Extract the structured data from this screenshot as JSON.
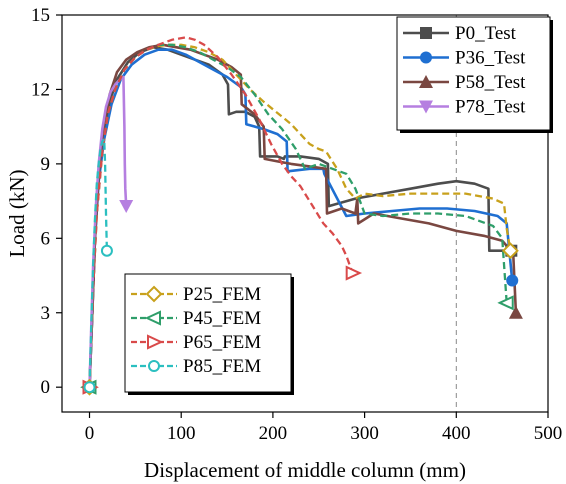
{
  "chart_data": {
    "type": "line",
    "title": "",
    "xlabel": "Displacement of middle column (mm)",
    "ylabel": "Load (kN)",
    "xlim": [
      -30,
      500
    ],
    "ylim": [
      -1,
      15
    ],
    "xticks": [
      0,
      100,
      200,
      300,
      400,
      500
    ],
    "yticks": [
      0,
      3,
      6,
      9,
      12,
      15
    ],
    "xtick_labels": [
      "0",
      "100",
      "200",
      "300",
      "400",
      "500"
    ],
    "ytick_labels": [
      "0",
      "3",
      "6",
      "9",
      "12",
      "15"
    ],
    "reference_line": {
      "x": 400,
      "style": "dashed",
      "color": "#888888"
    },
    "grid": false,
    "legends": [
      {
        "position": "top-right",
        "entries": [
          "P0_Test",
          "P36_Test",
          "P58_Test",
          "P78_Test"
        ]
      },
      {
        "position": "bottom-left",
        "entries": [
          "P25_FEM",
          "P45_FEM",
          "P65_FEM",
          "P85_FEM"
        ]
      }
    ],
    "series": [
      {
        "name": "P0_Test",
        "color": "#4d4d4d",
        "dash": "solid",
        "marker": "square",
        "x": [
          0,
          3,
          6,
          10,
          15,
          22,
          30,
          42,
          55,
          70,
          85,
          100,
          115,
          130,
          145,
          151,
          152,
          160,
          170,
          180,
          185,
          186,
          195,
          205,
          212,
          213,
          230,
          250,
          260,
          261,
          290,
          320,
          350,
          380,
          400,
          420,
          435,
          436,
          460
        ],
        "y": [
          0,
          3,
          6,
          8.5,
          10.2,
          11.5,
          12.4,
          13.1,
          13.5,
          13.7,
          13.6,
          13.4,
          13.2,
          13.0,
          12.6,
          12.2,
          11.0,
          11.1,
          11.1,
          10.9,
          10.5,
          9.3,
          9.3,
          9.3,
          9.2,
          9.3,
          9.3,
          9.2,
          9.0,
          7.3,
          7.6,
          7.8,
          8.0,
          8.2,
          8.3,
          8.2,
          8.0,
          5.5,
          5.5
        ]
      },
      {
        "name": "P36_Test",
        "color": "#1f6fd1",
        "dash": "solid",
        "marker": "circle",
        "x": [
          0,
          3,
          6,
          10,
          16,
          24,
          34,
          46,
          60,
          75,
          90,
          105,
          120,
          135,
          150,
          165,
          170,
          171,
          190,
          205,
          215,
          216,
          240,
          255,
          256,
          280,
          300,
          330,
          360,
          390,
          420,
          445,
          455,
          461
        ],
        "y": [
          0,
          3,
          6,
          8.3,
          10.0,
          11.4,
          12.4,
          13.0,
          13.4,
          13.6,
          13.6,
          13.4,
          13.1,
          12.8,
          12.5,
          12.1,
          11.8,
          10.6,
          10.4,
          10.2,
          9.9,
          8.7,
          8.8,
          8.8,
          8.6,
          6.9,
          7.0,
          7.1,
          7.2,
          7.2,
          7.1,
          6.9,
          6.6,
          4.3
        ]
      },
      {
        "name": "P58_Test",
        "color": "#7a4741",
        "dash": "solid",
        "marker": "triangle-up",
        "x": [
          0,
          3,
          6,
          10,
          15,
          22,
          30,
          40,
          52,
          65,
          80,
          95,
          110,
          125,
          140,
          155,
          165,
          166,
          180,
          190,
          191,
          205,
          220,
          240,
          258,
          259,
          275,
          290,
          292,
          293,
          310,
          340,
          370,
          400,
          430,
          450,
          462,
          465
        ],
        "y": [
          0,
          3,
          6,
          8.6,
          10.4,
          11.8,
          12.7,
          13.2,
          13.5,
          13.7,
          13.8,
          13.7,
          13.6,
          13.4,
          13.2,
          12.9,
          12.6,
          11.4,
          11.0,
          10.5,
          9.2,
          9.1,
          9.0,
          8.9,
          8.8,
          7.0,
          7.2,
          7.0,
          7.6,
          6.6,
          7.0,
          6.8,
          6.6,
          6.3,
          6.1,
          5.9,
          5.4,
          3.0
        ]
      },
      {
        "name": "P78_Test",
        "color": "#b57fe0",
        "dash": "solid",
        "marker": "triangle-down",
        "x": [
          0,
          2,
          4,
          7,
          10,
          14,
          18,
          23,
          28,
          33,
          37,
          38,
          38.5,
          39,
          40
        ],
        "y": [
          0,
          2.5,
          5.0,
          7.3,
          9.0,
          10.4,
          11.3,
          11.9,
          12.2,
          12.4,
          12.5,
          10.5,
          9.0,
          8.0,
          7.3
        ]
      },
      {
        "name": "P25_FEM",
        "color": "#c8a11c",
        "dash": "dashed",
        "marker": "diamond",
        "x": [
          0,
          4,
          8,
          14,
          20,
          28,
          38,
          50,
          62,
          75,
          88,
          100,
          115,
          130,
          145,
          160,
          175,
          190,
          200,
          210,
          220,
          230,
          240,
          250,
          258,
          270,
          280,
          290,
          300,
          320,
          350,
          380,
          410,
          440,
          452,
          455,
          459
        ],
        "y": [
          0,
          4,
          7,
          9.5,
          11,
          12,
          12.8,
          13.3,
          13.6,
          13.75,
          13.8,
          13.8,
          13.7,
          13.5,
          13.2,
          12.6,
          12.0,
          11.5,
          11.2,
          10.9,
          10.6,
          10.2,
          9.8,
          9.6,
          9.5,
          8.8,
          8.0,
          7.6,
          7.8,
          7.7,
          7.8,
          7.8,
          7.8,
          7.6,
          7.4,
          6.4,
          5.5
        ]
      },
      {
        "name": "P45_FEM",
        "color": "#2f9e6a",
        "dash": "dashed",
        "marker": "triangle-left",
        "x": [
          0,
          4,
          8,
          14,
          20,
          28,
          38,
          50,
          62,
          75,
          90,
          105,
          120,
          135,
          150,
          165,
          180,
          195,
          210,
          225,
          235,
          250,
          265,
          280,
          290,
          300,
          320,
          350,
          380,
          410,
          440,
          450,
          455
        ],
        "y": [
          0,
          4,
          7,
          9.5,
          11,
          12,
          12.8,
          13.3,
          13.6,
          13.8,
          13.8,
          13.7,
          13.5,
          13.2,
          12.9,
          12.5,
          11.8,
          11.0,
          10.4,
          9.6,
          8.8,
          9.0,
          8.8,
          8.6,
          8.0,
          7.0,
          6.9,
          7.0,
          7.0,
          6.9,
          6.5,
          6.0,
          3.4
        ]
      },
      {
        "name": "P65_FEM",
        "color": "#d94a4a",
        "dash": "dashed",
        "marker": "triangle-right",
        "x": [
          0,
          4,
          8,
          14,
          20,
          28,
          38,
          50,
          62,
          75,
          90,
          105,
          115,
          125,
          140,
          155,
          170,
          185,
          198,
          210,
          220,
          230,
          245,
          255,
          265,
          275,
          280,
          284,
          287
        ],
        "y": [
          0,
          4,
          7,
          9.5,
          11,
          12,
          12.8,
          13.3,
          13.6,
          13.8,
          14.0,
          14.1,
          14.0,
          13.8,
          13.3,
          12.6,
          11.8,
          10.8,
          9.8,
          9.0,
          8.5,
          8.1,
          7.2,
          6.6,
          6.2,
          5.7,
          5.3,
          4.9,
          4.6
        ]
      },
      {
        "name": "P85_FEM",
        "color": "#2bbfc0",
        "dash": "dashed",
        "marker": "circle-open",
        "x": [
          0,
          2,
          4,
          6,
          8,
          10,
          12,
          14,
          16,
          17,
          18,
          19
        ],
        "y": [
          0,
          2.5,
          5.0,
          6.8,
          8.2,
          9.0,
          9.6,
          9.9,
          10.0,
          9.0,
          7.0,
          5.5
        ]
      }
    ]
  }
}
